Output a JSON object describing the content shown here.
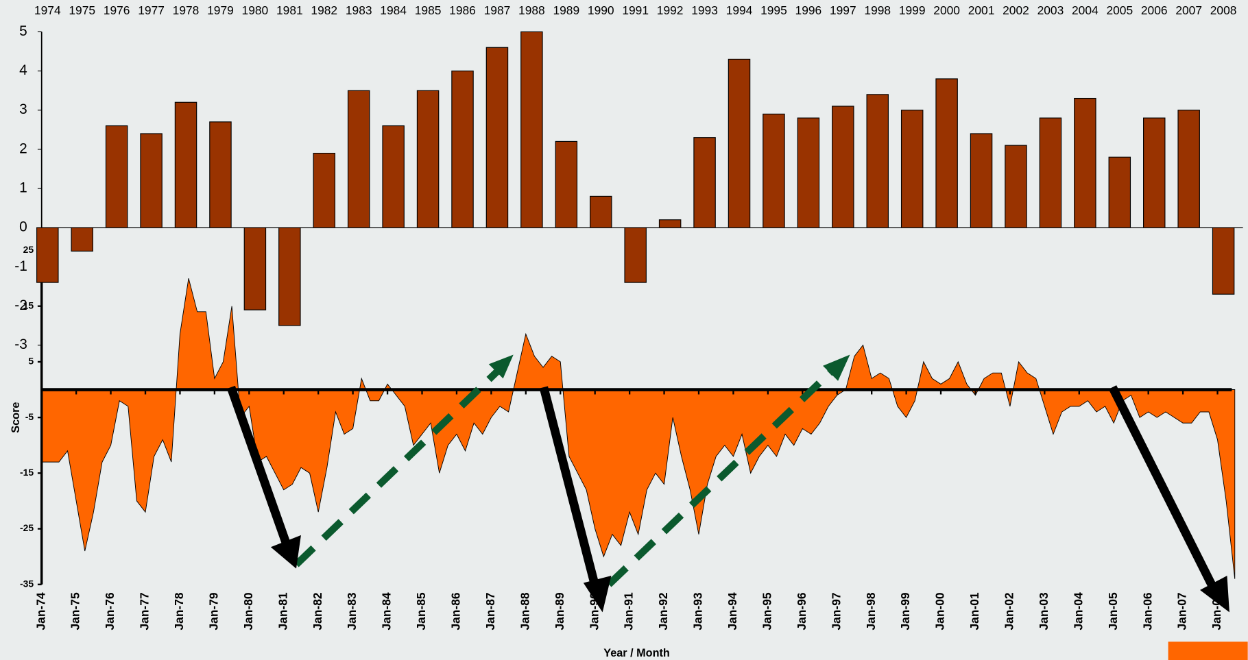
{
  "chart_data": [
    {
      "type": "bar",
      "categories": [
        "1974",
        "1975",
        "1976",
        "1977",
        "1978",
        "1979",
        "1980",
        "1981",
        "1982",
        "1983",
        "1984",
        "1985",
        "1986",
        "1987",
        "1988",
        "1989",
        "1990",
        "1991",
        "1992",
        "1993",
        "1994",
        "1995",
        "1996",
        "1997",
        "1998",
        "1999",
        "2000",
        "2001",
        "2002",
        "2003",
        "2004",
        "2005",
        "2006",
        "2007",
        "2008"
      ],
      "values": [
        -1.4,
        -0.6,
        2.6,
        2.4,
        3.2,
        2.7,
        -2.1,
        -2.5,
        1.9,
        3.5,
        2.6,
        3.5,
        4.0,
        4.6,
        5.0,
        2.2,
        0.8,
        -1.4,
        0.2,
        2.3,
        4.3,
        2.9,
        2.8,
        3.1,
        3.4,
        3.0,
        3.8,
        2.4,
        2.1,
        2.8,
        3.3,
        1.8,
        2.8,
        3.0,
        -1.7
      ],
      "color": "#993300",
      "ylim": [
        -3,
        5
      ],
      "yticks": [
        -3,
        -2,
        -1,
        0,
        1,
        2,
        3,
        4,
        5
      ]
    },
    {
      "type": "area",
      "x_label": "Year / Month",
      "y_label": "Score",
      "categories": [
        "Jan-74",
        null,
        null,
        null,
        "Jan-75",
        null,
        null,
        null,
        "Jan-76",
        null,
        null,
        null,
        "Jan-77",
        null,
        null,
        null,
        "Jan-78",
        null,
        null,
        null,
        "Jan-79",
        null,
        null,
        null,
        "Jan-80",
        null,
        null,
        null,
        "Jan-81",
        null,
        null,
        null,
        "Jan-82",
        null,
        null,
        null,
        "Jan-83",
        null,
        null,
        null,
        "Jan-84",
        null,
        null,
        null,
        "Jan-85",
        null,
        null,
        null,
        "Jan-86",
        null,
        null,
        null,
        "Jan-87",
        null,
        null,
        null,
        "Jan-88",
        null,
        null,
        null,
        "Jan-89",
        null,
        null,
        null,
        "Jan-90",
        null,
        null,
        null,
        "Jan-91",
        null,
        null,
        null,
        "Jan-92",
        null,
        null,
        null,
        "Jan-93",
        null,
        null,
        null,
        "Jan-94",
        null,
        null,
        null,
        "Jan-95",
        null,
        null,
        null,
        "Jan-96",
        null,
        null,
        null,
        "Jan-97",
        null,
        null,
        null,
        "Jan-98",
        null,
        null,
        null,
        "Jan-99",
        null,
        null,
        null,
        "Jan-00",
        null,
        null,
        null,
        "Jan-01",
        null,
        null,
        null,
        "Jan-02",
        null,
        null,
        null,
        "Jan-03",
        null,
        null,
        null,
        "Jan-04",
        null,
        null,
        null,
        "Jan-05",
        null,
        null,
        null,
        "Jan-06",
        null,
        null,
        null,
        "Jan-07",
        null,
        null,
        null,
        "Jan-08",
        null,
        null
      ],
      "values": [
        -13,
        -13,
        -13,
        -11,
        -20,
        -29,
        -22,
        -13,
        -10,
        -2,
        -3,
        -20,
        -22,
        -12,
        -9,
        -13,
        10,
        20,
        14,
        14,
        2,
        5,
        15,
        -5,
        -3,
        -13,
        -12,
        -15,
        -18,
        -17,
        -14,
        -15,
        -22,
        -14,
        -4,
        -8,
        -7,
        2,
        -2,
        -2,
        1,
        -1,
        -3,
        -10,
        -8,
        -6,
        -15,
        -10,
        -8,
        -11,
        -6,
        -8,
        -5,
        -3,
        -4,
        3,
        10,
        6,
        4,
        6,
        5,
        -12,
        -15,
        -18,
        -25,
        -30,
        -26,
        -28,
        -22,
        -26,
        -18,
        -15,
        -17,
        -5,
        -12,
        -18,
        -26,
        -17,
        -12,
        -10,
        -12,
        -8,
        -15,
        -12,
        -10,
        -12,
        -8,
        -10,
        -7,
        -8,
        -6,
        -3,
        -1,
        0,
        6,
        8,
        2,
        3,
        2,
        -3,
        -5,
        -2,
        5,
        2,
        1,
        2,
        5,
        1,
        -1,
        2,
        3,
        3,
        -3,
        5,
        3,
        2,
        -3,
        -8,
        -4,
        -3,
        -3,
        -2,
        -4,
        -3,
        -6,
        -2,
        -1,
        -5,
        -4,
        -5,
        -4,
        -5,
        -6,
        -6,
        -4,
        -4,
        -9,
        -20,
        -34
      ],
      "color": "#ff6600",
      "ylim": [
        -35,
        25
      ],
      "yticks": [
        -35,
        -25,
        -15,
        -5,
        5,
        15,
        25
      ]
    }
  ]
}
